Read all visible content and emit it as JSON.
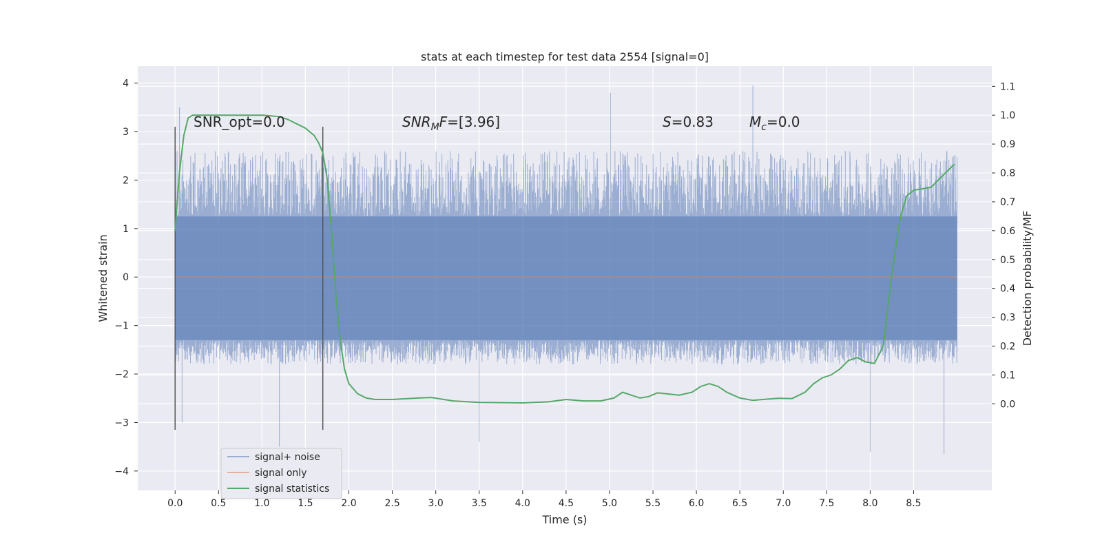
{
  "chart_data": {
    "type": "line",
    "title": "stats at each timestep for test data 2554 [signal=0]",
    "xlabel": "Time (s)",
    "ylabel": "Whitened strain",
    "ylabel_right": "Detection probability/MF",
    "xlim": [
      -0.43,
      9.4
    ],
    "ylim": [
      -4.4,
      4.35
    ],
    "ylim_right": [
      -0.3,
      1.17
    ],
    "x_ticks": [
      "0.0",
      "0.5",
      "1.0",
      "1.5",
      "2.0",
      "2.5",
      "3.0",
      "3.5",
      "4.0",
      "4.5",
      "5.0",
      "5.5",
      "6.0",
      "6.5",
      "7.0",
      "7.5",
      "8.0",
      "8.5"
    ],
    "y_ticks": [
      "4",
      "3",
      "2",
      "1",
      "0",
      "−1",
      "−2",
      "−3",
      "−4"
    ],
    "y_right_ticks": [
      "1.1",
      "1.0",
      "0.9",
      "0.8",
      "0.7",
      "0.6",
      "0.5",
      "0.4",
      "0.3",
      "0.2",
      "0.1",
      "0.0"
    ],
    "annotations": {
      "snr_opt": "SNR_opt=0.0",
      "snr_mf_main": "SNR",
      "snr_mf_sub": "M",
      "snr_mf_f": "F",
      "snr_mf_val": "=[3.96]",
      "s_main": "S",
      "s_val": "=0.83",
      "mc_main": "M",
      "mc_sub": "c",
      "mc_val": "=0.0"
    },
    "vlines": [
      0.0,
      1.7
    ],
    "vline_range": [
      -3.15,
      3.1
    ],
    "series": [
      {
        "name": "signal+ noise",
        "axis": "left",
        "color": "#4c72b0",
        "t_range": [
          0.0,
          9.0
        ],
        "band_core": [
          -1.3,
          1.25
        ],
        "typical_envelope": [
          -1.8,
          2.6
        ],
        "extremes": [
          [
            0.05,
            3.5
          ],
          [
            5.01,
            3.8
          ],
          [
            6.65,
            3.95
          ],
          [
            0.08,
            -3.0
          ],
          [
            3.5,
            -3.4
          ],
          [
            8.85,
            -3.65
          ],
          [
            8.0,
            -3.6
          ],
          [
            1.2,
            -3.5
          ]
        ]
      },
      {
        "name": "signal only",
        "axis": "left",
        "color": "#dd8452",
        "x": [
          0.0,
          9.0
        ],
        "y": [
          0.0,
          0.0
        ]
      },
      {
        "name": "signal statistics",
        "axis": "right",
        "color": "#55a868",
        "x": [
          0.0,
          0.05,
          0.1,
          0.15,
          0.2,
          0.3,
          0.5,
          0.8,
          1.0,
          1.1,
          1.2,
          1.3,
          1.4,
          1.5,
          1.6,
          1.65,
          1.7,
          1.75,
          1.8,
          1.85,
          1.9,
          1.95,
          2.0,
          2.1,
          2.2,
          2.3,
          2.5,
          2.8,
          2.95,
          3.2,
          3.5,
          4.0,
          4.3,
          4.5,
          4.7,
          4.9,
          5.05,
          5.15,
          5.25,
          5.35,
          5.45,
          5.55,
          5.65,
          5.8,
          5.95,
          6.05,
          6.15,
          6.25,
          6.35,
          6.5,
          6.65,
          6.8,
          6.95,
          7.1,
          7.25,
          7.35,
          7.45,
          7.55,
          7.65,
          7.75,
          7.85,
          7.95,
          8.05,
          8.15,
          8.25,
          8.35,
          8.42,
          8.5,
          8.6,
          8.7,
          8.8,
          8.9,
          8.97
        ],
        "y": [
          0.6,
          0.8,
          0.93,
          0.99,
          1.0,
          1.0,
          1.0,
          1.0,
          1.0,
          0.998,
          0.995,
          0.985,
          0.97,
          0.955,
          0.93,
          0.905,
          0.87,
          0.78,
          0.6,
          0.38,
          0.22,
          0.12,
          0.07,
          0.035,
          0.02,
          0.015,
          0.015,
          0.02,
          0.022,
          0.01,
          0.005,
          0.003,
          0.007,
          0.015,
          0.01,
          0.01,
          0.02,
          0.04,
          0.03,
          0.02,
          0.025,
          0.038,
          0.035,
          0.03,
          0.04,
          0.06,
          0.07,
          0.06,
          0.04,
          0.02,
          0.012,
          0.016,
          0.019,
          0.018,
          0.04,
          0.07,
          0.09,
          0.1,
          0.12,
          0.15,
          0.16,
          0.145,
          0.14,
          0.2,
          0.45,
          0.65,
          0.72,
          0.74,
          0.745,
          0.75,
          0.78,
          0.81,
          0.83
        ]
      }
    ],
    "legend": {
      "position": "lower-left",
      "entries": [
        "signal+ noise",
        "signal only",
        "signal statistics"
      ]
    },
    "grid": true
  }
}
